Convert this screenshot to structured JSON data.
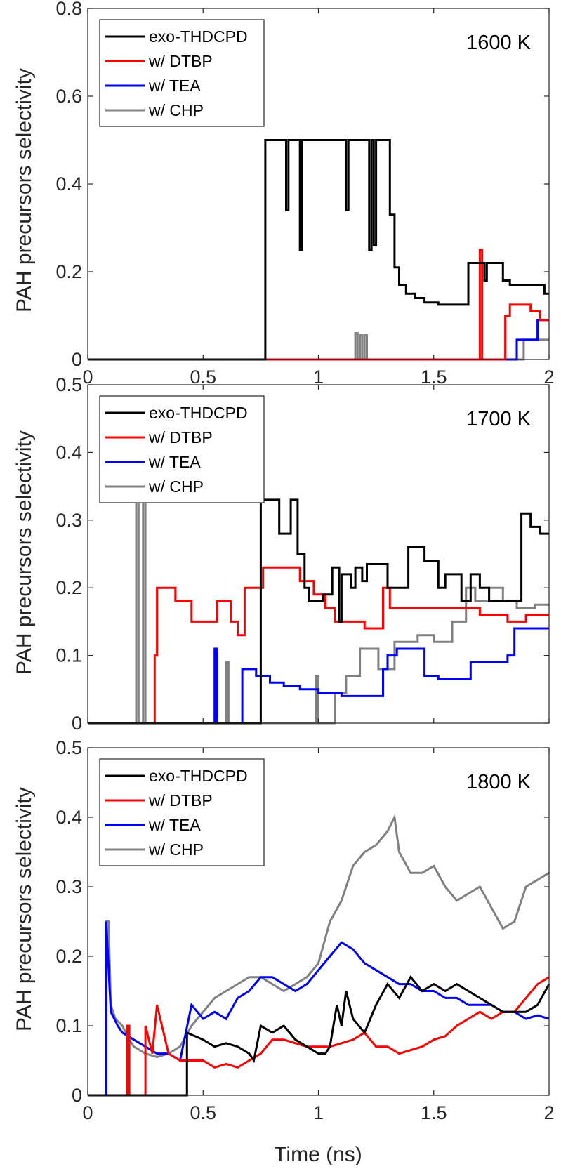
{
  "figure": {
    "xlabel": "Time (ns)",
    "ylabel": "PAH precursors selectivity"
  },
  "colors": {
    "exo-THDCPD": "#000000",
    "w/ DTBP": "#ff0000",
    "w/ TEA": "#0000ff",
    "w/ CHP": "#808080"
  },
  "chart_data": [
    {
      "type": "line",
      "annotation": "1600 K",
      "xlim": [
        0,
        2
      ],
      "ylim": [
        0,
        0.8
      ],
      "xticks": [
        "0",
        "0.5",
        "1",
        "1.5",
        "2"
      ],
      "yticks": [
        "0",
        "0.2",
        "0.4",
        "0.6",
        "0.8"
      ],
      "legend_position": "top-left",
      "series": [
        {
          "name": "exo-THDCPD",
          "x": [
            0,
            0.77,
            0.77,
            0.79,
            0.79,
            0.86,
            0.86,
            0.87,
            0.87,
            0.92,
            0.92,
            0.93,
            0.93,
            1.12,
            1.12,
            1.13,
            1.13,
            1.22,
            1.22,
            1.23,
            1.23,
            1.24,
            1.24,
            1.25,
            1.25,
            1.31,
            1.31,
            1.33,
            1.33,
            1.35,
            1.35,
            1.38,
            1.38,
            1.42,
            1.42,
            1.46,
            1.46,
            1.52,
            1.52,
            1.65,
            1.65,
            1.72,
            1.72,
            1.73,
            1.73,
            1.8,
            1.8,
            1.83,
            1.83,
            1.98,
            1.98,
            2.0
          ],
          "y": [
            0,
            0,
            0.5,
            0.5,
            0.5,
            0.5,
            0.34,
            0.34,
            0.5,
            0.5,
            0.25,
            0.25,
            0.5,
            0.5,
            0.34,
            0.34,
            0.5,
            0.5,
            0.25,
            0.25,
            0.5,
            0.5,
            0.26,
            0.26,
            0.5,
            0.5,
            0.33,
            0.33,
            0.21,
            0.21,
            0.17,
            0.17,
            0.15,
            0.15,
            0.14,
            0.14,
            0.13,
            0.13,
            0.125,
            0.125,
            0.22,
            0.22,
            0.18,
            0.18,
            0.22,
            0.22,
            0.18,
            0.18,
            0.17,
            0.17,
            0.15,
            0.15
          ]
        },
        {
          "name": "w/ DTBP",
          "x": [
            0,
            1.7,
            1.7,
            1.71,
            1.71,
            1.81,
            1.81,
            1.83,
            1.83,
            1.92,
            1.92,
            1.96,
            1.96,
            2.0
          ],
          "y": [
            0,
            0,
            0.25,
            0.25,
            0,
            0,
            0.1,
            0.1,
            0.125,
            0.125,
            0.11,
            0.11,
            0.09,
            0.09
          ]
        },
        {
          "name": "w/ TEA",
          "x": [
            0,
            1.86,
            1.86,
            1.95,
            1.95,
            2.0
          ],
          "y": [
            0,
            0,
            0.045,
            0.045,
            0.09,
            0.09
          ]
        },
        {
          "name": "w/ CHP",
          "x": [
            0,
            1.16,
            1.16,
            1.17,
            1.17,
            1.18,
            1.18,
            1.19,
            1.19,
            1.2,
            1.2,
            1.21,
            1.21,
            1.89,
            1.89,
            2.0
          ],
          "y": [
            0,
            0,
            0.06,
            0.06,
            0,
            0,
            0.055,
            0.055,
            0,
            0,
            0.055,
            0.055,
            0,
            0,
            0.045,
            0.045
          ]
        }
      ]
    },
    {
      "type": "line",
      "annotation": "1700 K",
      "xlim": [
        0,
        2
      ],
      "ylim": [
        0,
        0.5
      ],
      "xticks": [
        "",
        "",
        "",
        "",
        ""
      ],
      "yticks": [
        "0",
        "0.1",
        "0.2",
        "0.3",
        "0.4",
        "0.5"
      ],
      "legend_position": "top-left",
      "series": [
        {
          "name": "exo-THDCPD",
          "x": [
            0,
            0.75,
            0.75,
            0.83,
            0.83,
            0.88,
            0.88,
            0.91,
            0.91,
            0.94,
            0.94,
            0.96,
            0.96,
            1.02,
            1.02,
            1.06,
            1.06,
            1.09,
            1.09,
            1.1,
            1.1,
            1.14,
            1.14,
            1.16,
            1.16,
            1.19,
            1.19,
            1.21,
            1.21,
            1.25,
            1.25,
            1.3,
            1.3,
            1.39,
            1.39,
            1.46,
            1.46,
            1.52,
            1.52,
            1.55,
            1.55,
            1.62,
            1.62,
            1.66,
            1.66,
            1.7,
            1.7,
            1.74,
            1.74,
            1.88,
            1.88,
            1.92,
            1.92,
            1.96,
            1.96,
            2.0
          ],
          "y": [
            0,
            0,
            0.33,
            0.33,
            0.28,
            0.28,
            0.33,
            0.33,
            0.25,
            0.25,
            0.2,
            0.2,
            0.18,
            0.18,
            0.19,
            0.19,
            0.23,
            0.23,
            0.15,
            0.15,
            0.22,
            0.22,
            0.2,
            0.2,
            0.23,
            0.23,
            0.21,
            0.21,
            0.235,
            0.235,
            0.235,
            0.235,
            0.2,
            0.2,
            0.26,
            0.26,
            0.24,
            0.24,
            0.2,
            0.2,
            0.22,
            0.22,
            0.18,
            0.18,
            0.22,
            0.22,
            0.2,
            0.2,
            0.18,
            0.18,
            0.31,
            0.31,
            0.29,
            0.29,
            0.28,
            0.28
          ]
        },
        {
          "name": "w/ DTBP",
          "x": [
            0,
            0.29,
            0.29,
            0.3,
            0.3,
            0.38,
            0.38,
            0.45,
            0.45,
            0.56,
            0.56,
            0.62,
            0.62,
            0.65,
            0.65,
            0.68,
            0.68,
            0.76,
            0.76,
            0.92,
            0.92,
            0.98,
            0.98,
            1.03,
            1.03,
            1.07,
            1.07,
            1.14,
            1.14,
            1.2,
            1.2,
            1.28,
            1.28,
            1.31,
            1.31,
            1.43,
            1.43,
            1.55,
            1.55,
            1.7,
            1.7,
            1.82,
            1.82,
            1.9,
            1.9,
            2.0
          ],
          "y": [
            0,
            0,
            0.1,
            0.1,
            0.2,
            0.2,
            0.18,
            0.18,
            0.15,
            0.15,
            0.18,
            0.18,
            0.15,
            0.15,
            0.13,
            0.13,
            0.2,
            0.2,
            0.23,
            0.23,
            0.21,
            0.21,
            0.19,
            0.19,
            0.17,
            0.17,
            0.15,
            0.15,
            0.15,
            0.15,
            0.14,
            0.14,
            0.2,
            0.2,
            0.17,
            0.17,
            0.17,
            0.17,
            0.17,
            0.17,
            0.16,
            0.16,
            0.15,
            0.15,
            0.16,
            0.16
          ]
        },
        {
          "name": "w/ TEA",
          "x": [
            0,
            0.55,
            0.55,
            0.56,
            0.56,
            0.67,
            0.67,
            0.68,
            0.68,
            0.73,
            0.73,
            0.79,
            0.79,
            0.85,
            0.85,
            0.92,
            0.92,
            1.0,
            1.0,
            1.1,
            1.1,
            1.14,
            1.14,
            1.28,
            1.28,
            1.3,
            1.3,
            1.34,
            1.34,
            1.46,
            1.46,
            1.52,
            1.52,
            1.66,
            1.66,
            1.82,
            1.82,
            1.85,
            1.85,
            2.0
          ],
          "y": [
            0,
            0,
            0.11,
            0.11,
            0,
            0,
            0.08,
            0.08,
            0.08,
            0.08,
            0.07,
            0.07,
            0.06,
            0.06,
            0.055,
            0.055,
            0.05,
            0.05,
            0.045,
            0.045,
            0.04,
            0.04,
            0.04,
            0.04,
            0.08,
            0.08,
            0.1,
            0.1,
            0.11,
            0.11,
            0.07,
            0.07,
            0.065,
            0.065,
            0.09,
            0.09,
            0.1,
            0.1,
            0.14,
            0.14
          ]
        },
        {
          "name": "w/ CHP",
          "x": [
            0,
            0.21,
            0.21,
            0.22,
            0.22,
            0.24,
            0.24,
            0.25,
            0.25,
            0.6,
            0.6,
            0.61,
            0.61,
            0.99,
            0.99,
            1.0,
            1.0,
            1.07,
            1.07,
            1.12,
            1.12,
            1.18,
            1.18,
            1.26,
            1.26,
            1.33,
            1.33,
            1.43,
            1.43,
            1.5,
            1.5,
            1.58,
            1.58,
            1.64,
            1.64,
            1.68,
            1.68,
            1.74,
            1.74,
            1.8,
            1.8,
            1.86,
            1.86,
            1.94,
            1.94,
            2.0
          ],
          "y": [
            0,
            0,
            0.33,
            0.33,
            0,
            0,
            0.33,
            0.33,
            0,
            0,
            0.09,
            0.09,
            0,
            0,
            0.07,
            0.07,
            0,
            0,
            0.045,
            0.045,
            0.07,
            0.07,
            0.11,
            0.11,
            0.08,
            0.08,
            0.12,
            0.12,
            0.13,
            0.13,
            0.12,
            0.12,
            0.15,
            0.15,
            0.2,
            0.2,
            0.18,
            0.18,
            0.2,
            0.2,
            0.18,
            0.18,
            0.17,
            0.17,
            0.175,
            0.175
          ]
        }
      ]
    },
    {
      "type": "line",
      "annotation": "1800 K",
      "xlim": [
        0,
        2
      ],
      "ylim": [
        0,
        0.5
      ],
      "xticks": [
        "0",
        "0.5",
        "1",
        "1.5",
        "2"
      ],
      "yticks": [
        "0",
        "0.1",
        "0.2",
        "0.3",
        "0.4",
        "0.5"
      ],
      "legend_position": "top-left",
      "series": [
        {
          "name": "exo-THDCPD",
          "x": [
            0,
            0.43,
            0.43,
            0.5,
            0.55,
            0.6,
            0.65,
            0.7,
            0.72,
            0.75,
            0.8,
            0.85,
            0.9,
            0.95,
            1.0,
            1.03,
            1.05,
            1.08,
            1.1,
            1.12,
            1.15,
            1.2,
            1.25,
            1.3,
            1.35,
            1.4,
            1.45,
            1.5,
            1.55,
            1.6,
            1.65,
            1.7,
            1.75,
            1.8,
            1.85,
            1.9,
            1.95,
            2.0
          ],
          "y": [
            0,
            0,
            0.09,
            0.08,
            0.07,
            0.075,
            0.07,
            0.06,
            0.05,
            0.1,
            0.09,
            0.1,
            0.08,
            0.07,
            0.06,
            0.06,
            0.07,
            0.13,
            0.1,
            0.15,
            0.11,
            0.09,
            0.13,
            0.16,
            0.14,
            0.17,
            0.15,
            0.16,
            0.15,
            0.16,
            0.15,
            0.14,
            0.13,
            0.12,
            0.12,
            0.12,
            0.13,
            0.16
          ]
        },
        {
          "name": "w/ DTBP",
          "x": [
            0,
            0.17,
            0.17,
            0.18,
            0.18,
            0.25,
            0.25,
            0.28,
            0.3,
            0.35,
            0.4,
            0.5,
            0.55,
            0.6,
            0.65,
            0.7,
            0.75,
            0.8,
            0.85,
            0.9,
            0.95,
            1.0,
            1.05,
            1.1,
            1.15,
            1.2,
            1.25,
            1.3,
            1.35,
            1.4,
            1.45,
            1.5,
            1.55,
            1.6,
            1.65,
            1.7,
            1.75,
            1.8,
            1.85,
            1.9,
            1.95,
            2.0
          ],
          "y": [
            0,
            0,
            0.1,
            0.1,
            0,
            0,
            0.1,
            0.06,
            0.13,
            0.06,
            0.05,
            0.05,
            0.04,
            0.045,
            0.04,
            0.05,
            0.06,
            0.08,
            0.08,
            0.075,
            0.07,
            0.07,
            0.07,
            0.075,
            0.08,
            0.09,
            0.07,
            0.07,
            0.06,
            0.065,
            0.07,
            0.08,
            0.085,
            0.1,
            0.11,
            0.12,
            0.11,
            0.12,
            0.12,
            0.14,
            0.16,
            0.17
          ]
        },
        {
          "name": "w/ TEA",
          "x": [
            0,
            0.08,
            0.08,
            0.1,
            0.13,
            0.15,
            0.2,
            0.25,
            0.3,
            0.35,
            0.4,
            0.45,
            0.5,
            0.55,
            0.6,
            0.65,
            0.7,
            0.75,
            0.8,
            0.85,
            0.9,
            0.95,
            1.0,
            1.05,
            1.1,
            1.15,
            1.2,
            1.25,
            1.3,
            1.35,
            1.4,
            1.45,
            1.5,
            1.55,
            1.6,
            1.65,
            1.7,
            1.75,
            1.8,
            1.85,
            1.9,
            1.95,
            2.0
          ],
          "y": [
            0,
            0,
            0.25,
            0.12,
            0.1,
            0.09,
            0.08,
            0.07,
            0.06,
            0.06,
            0.05,
            0.13,
            0.11,
            0.12,
            0.11,
            0.14,
            0.15,
            0.17,
            0.17,
            0.16,
            0.15,
            0.16,
            0.18,
            0.2,
            0.22,
            0.21,
            0.19,
            0.18,
            0.17,
            0.16,
            0.16,
            0.15,
            0.15,
            0.14,
            0.14,
            0.13,
            0.13,
            0.13,
            0.12,
            0.12,
            0.11,
            0.115,
            0.11
          ]
        },
        {
          "name": "w/ CHP",
          "x": [
            0,
            0.08,
            0.08,
            0.09,
            0.1,
            0.12,
            0.15,
            0.18,
            0.2,
            0.25,
            0.3,
            0.35,
            0.4,
            0.45,
            0.5,
            0.55,
            0.6,
            0.65,
            0.7,
            0.75,
            0.8,
            0.85,
            0.9,
            0.95,
            1.0,
            1.05,
            1.1,
            1.15,
            1.2,
            1.25,
            1.3,
            1.33,
            1.35,
            1.4,
            1.45,
            1.5,
            1.55,
            1.6,
            1.65,
            1.7,
            1.75,
            1.8,
            1.85,
            1.9,
            1.95,
            2.0
          ],
          "y": [
            0,
            0,
            0.25,
            0.25,
            0.13,
            0.11,
            0.1,
            0.08,
            0.07,
            0.06,
            0.055,
            0.06,
            0.07,
            0.1,
            0.12,
            0.14,
            0.15,
            0.16,
            0.17,
            0.17,
            0.16,
            0.15,
            0.16,
            0.17,
            0.19,
            0.25,
            0.28,
            0.33,
            0.35,
            0.36,
            0.38,
            0.4,
            0.35,
            0.32,
            0.32,
            0.33,
            0.3,
            0.28,
            0.29,
            0.3,
            0.27,
            0.24,
            0.25,
            0.3,
            0.31,
            0.32
          ]
        }
      ]
    }
  ]
}
